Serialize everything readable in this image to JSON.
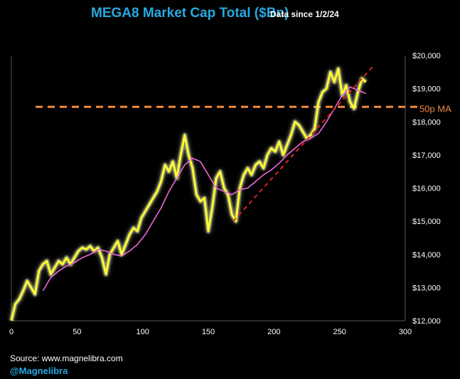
{
  "header": {
    "title": "MEGA8 Market Cap Total ($Bn)",
    "subtitle": "Data since 1/2/24"
  },
  "footer": {
    "source": "Source: www.magnelibra.com",
    "handle": "@Magnelibra"
  },
  "colors": {
    "background": "#000000",
    "price_line": "#ffff33",
    "price_glow": "#e8e8c0",
    "ma_line": "#ee66dd",
    "trendline": "#dd2222",
    "reference_line": "#f08a3c",
    "axis_text": "#ffffff",
    "axis_line": "#555555"
  },
  "chart_data": {
    "type": "line",
    "title": "MEGA8 Market Cap Total ($Bn)",
    "xlim": [
      0,
      300
    ],
    "ylim": [
      12000,
      20000
    ],
    "x_ticks": [
      "0",
      "50",
      "100",
      "150",
      "200",
      "250",
      "300"
    ],
    "x_tick_values": [
      0,
      50,
      100,
      150,
      200,
      250,
      300
    ],
    "y_ticks": [
      "$12,000",
      "$13,000",
      "$14,000",
      "$15,000",
      "$16,000",
      "$17,000",
      "$18,000",
      "$19,000",
      "$20,000"
    ],
    "y_tick_values": [
      12000,
      13000,
      14000,
      15000,
      16000,
      17000,
      18000,
      19000,
      20000
    ],
    "y_axis_side": "right",
    "grid": false,
    "series": [
      {
        "key": "market_cap",
        "x": [
          0,
          3,
          6,
          9,
          12,
          15,
          18,
          21,
          24,
          27,
          30,
          33,
          36,
          39,
          42,
          45,
          48,
          51,
          54,
          57,
          60,
          63,
          66,
          69,
          72,
          75,
          78,
          81,
          84,
          87,
          90,
          93,
          96,
          99,
          102,
          105,
          108,
          111,
          114,
          117,
          120,
          123,
          126,
          129,
          132,
          135,
          138,
          141,
          144,
          147,
          150,
          153,
          156,
          159,
          162,
          165,
          168,
          171,
          174,
          177,
          180,
          183,
          186,
          189,
          192,
          195,
          198,
          201,
          204,
          207,
          210,
          213,
          216,
          219,
          222,
          225,
          228,
          231,
          234,
          237,
          240,
          243,
          246,
          249,
          252,
          255,
          258,
          261,
          264,
          267,
          270
        ],
        "values": [
          12000,
          12500,
          12650,
          12900,
          13200,
          13000,
          12800,
          13500,
          13700,
          13800,
          13400,
          13600,
          13800,
          13700,
          13900,
          13700,
          13900,
          14100,
          14200,
          14150,
          14250,
          14100,
          14200,
          13900,
          13400,
          14000,
          14200,
          14400,
          14000,
          14300,
          14600,
          14800,
          14700,
          15100,
          15300,
          15500,
          15700,
          15900,
          16200,
          16700,
          16500,
          16800,
          16300,
          17000,
          17600,
          17000,
          16600,
          15800,
          15600,
          15700,
          14700,
          15400,
          16300,
          16500,
          16000,
          15800,
          15200,
          15000,
          16000,
          16400,
          16600,
          16400,
          16700,
          16800,
          16600,
          17000,
          17200,
          17100,
          17400,
          17000,
          17300,
          17600,
          18000,
          17900,
          17700,
          17500,
          17600,
          17800,
          18600,
          18900,
          19000,
          19500,
          19200,
          19600,
          18800,
          19100,
          18600,
          18400,
          18900,
          19300,
          19200
        ]
      },
      {
        "key": "moving_average",
        "x": [
          24,
          30,
          36,
          42,
          48,
          54,
          60,
          66,
          72,
          78,
          84,
          90,
          96,
          102,
          108,
          114,
          120,
          126,
          132,
          138,
          144,
          150,
          156,
          162,
          168,
          174,
          180,
          186,
          192,
          198,
          204,
          210,
          216,
          222,
          228,
          234,
          240,
          246,
          252,
          258,
          264,
          270
        ],
        "values": [
          12900,
          13300,
          13500,
          13650,
          13750,
          13900,
          14000,
          14150,
          14100,
          14000,
          13950,
          14100,
          14300,
          14600,
          15000,
          15400,
          15900,
          16300,
          16700,
          16900,
          16800,
          16400,
          16000,
          15900,
          15800,
          15950,
          16000,
          16200,
          16400,
          16550,
          16750,
          17000,
          17200,
          17400,
          17500,
          17650,
          18000,
          18400,
          18800,
          19050,
          18950,
          18850
        ]
      }
    ],
    "trendline": {
      "x": [
        169,
        275
      ],
      "values": [
        15000,
        19650
      ]
    },
    "reference_line": {
      "value": 18450,
      "label": "50p MA"
    }
  }
}
